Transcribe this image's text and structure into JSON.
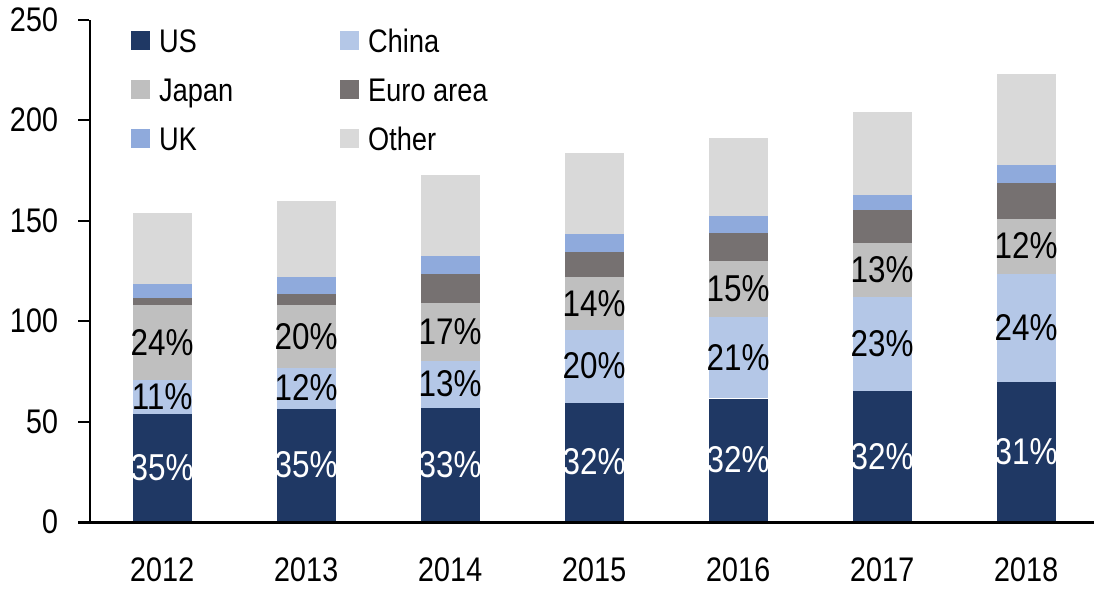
{
  "chart_data": {
    "type": "bar",
    "variant": "stacked",
    "title": "",
    "xlabel": "",
    "ylabel": "",
    "categories": [
      "2012",
      "2013",
      "2014",
      "2015",
      "2016",
      "2017",
      "2018"
    ],
    "series": [
      {
        "name": "US",
        "color": "#1F3864",
        "values": [
          54,
          56.5,
          57,
          59.5,
          61.5,
          65,
          69.5
        ],
        "labels": [
          "35%",
          "35%",
          "33%",
          "32%",
          "32%",
          "32%",
          "31%"
        ],
        "label_color": "#FFFFFF"
      },
      {
        "name": "China",
        "color": "#B4C7E7",
        "values": [
          16.5,
          20,
          23,
          36,
          40.5,
          47,
          54
        ],
        "labels": [
          "11%",
          "12%",
          "13%",
          "20%",
          "21%",
          "23%",
          "24%"
        ],
        "label_color": "#000000"
      },
      {
        "name": "Japan",
        "color": "#BFBFBF",
        "values": [
          37.5,
          31.5,
          29,
          26.5,
          28,
          27,
          27.5
        ],
        "labels": [
          "24%",
          "20%",
          "17%",
          "14%",
          "15%",
          "13%",
          "12%"
        ],
        "label_color": "#000000"
      },
      {
        "name": "Euro area",
        "color": "#767171",
        "values": [
          3.5,
          5.5,
          14.5,
          12.5,
          14,
          16.5,
          18
        ],
        "labels": null,
        "label_color": null
      },
      {
        "name": "UK",
        "color": "#8FAADC",
        "values": [
          7,
          8.5,
          9,
          9,
          8.5,
          7.5,
          9
        ],
        "labels": null,
        "label_color": null
      },
      {
        "name": "Other",
        "color": "#D9D9D9",
        "values": [
          35.5,
          38,
          40.5,
          40.5,
          38.5,
          41,
          45
        ],
        "labels": null,
        "label_color": null
      }
    ],
    "totals": [
      154,
      160,
      173,
      184,
      191,
      204,
      223
    ],
    "stack_order_bottom_to_top": [
      "US",
      "China",
      "Japan",
      "Euro area",
      "UK",
      "Other"
    ],
    "ylim": [
      0,
      250
    ],
    "yticks": [
      0,
      50,
      100,
      150,
      200,
      250
    ],
    "grid": false,
    "legend_position": "top-left",
    "legend_columns": 2,
    "legend_order": [
      "US",
      "China",
      "Japan",
      "Euro area",
      "UK",
      "Other"
    ],
    "axis_color": "#000000",
    "background_color": "#FFFFFF"
  }
}
